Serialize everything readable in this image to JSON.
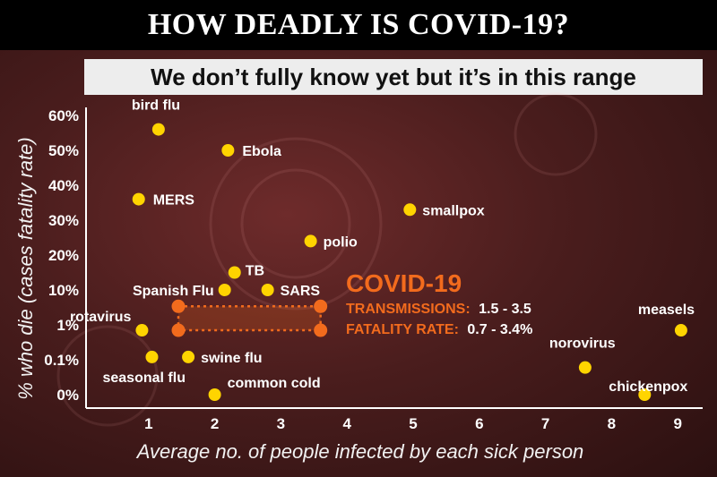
{
  "header": {
    "title": "HOW DEADLY IS COVID-19?",
    "subtitle": "We don’t fully know yet but it’s in this range"
  },
  "colors": {
    "point": "#ffd400",
    "covid": "#f26b1d",
    "axis": "#ffffff"
  },
  "chart_data": {
    "type": "scatter",
    "xlabel": "Average no. of people infected by each sick person",
    "ylabel": "% who die (cases fatality rate)",
    "xlim": [
      0.3,
      9.3
    ],
    "x_ticks": [
      "1",
      "2",
      "3",
      "4",
      "5",
      "6",
      "7",
      "8",
      "9"
    ],
    "y_ticks": [
      "0%",
      "0.1%",
      "1%",
      "10%",
      "20%",
      "30%",
      "40%",
      "50%",
      "60%"
    ],
    "points": [
      {
        "name": "bird flu",
        "x": 1.15,
        "y": "56%"
      },
      {
        "name": "Ebola",
        "x": 2.2,
        "y": "50%"
      },
      {
        "name": "MERS",
        "x": 0.85,
        "y": "36%"
      },
      {
        "name": "smallpox",
        "x": 4.95,
        "y": "33%"
      },
      {
        "name": "polio",
        "x": 3.45,
        "y": "24%"
      },
      {
        "name": "TB",
        "x": 2.3,
        "y": "15%"
      },
      {
        "name": "Spanish Flu",
        "x": 2.15,
        "y": "10%"
      },
      {
        "name": "SARS",
        "x": 2.8,
        "y": "10%"
      },
      {
        "name": "rotavirus",
        "x": 0.9,
        "y": "0.7%"
      },
      {
        "name": "seasonal flu",
        "x": 1.05,
        "y": "0.12%"
      },
      {
        "name": "swine flu",
        "x": 1.6,
        "y": "0.12%"
      },
      {
        "name": "common cold",
        "x": 2.0,
        "y": "0.01%"
      },
      {
        "name": "measels",
        "x": 9.05,
        "y": "0.7%"
      },
      {
        "name": "norovirus",
        "x": 7.6,
        "y": "0.06%"
      },
      {
        "name": "chickenpox",
        "x": 8.5,
        "y": "0.01%"
      }
    ],
    "covid": {
      "title": "COVID-19",
      "transmissions_label": "TRANSMISSIONS:",
      "transmissions_value": "1.5 - 3.5",
      "fatality_label": "FATALITY RATE:",
      "fatality_value": "0.7 - 3.4%",
      "x_range": [
        1.45,
        3.6
      ],
      "y_range": [
        "0.7%",
        "3.4%"
      ]
    }
  }
}
